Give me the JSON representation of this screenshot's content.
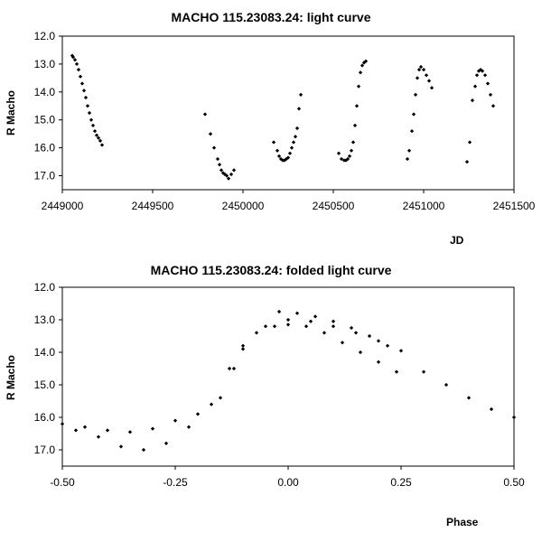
{
  "chart_data": [
    {
      "type": "scatter",
      "title": "MACHO 115.23083.24: light curve",
      "xlabel": "JD",
      "ylabel": "R Macho",
      "xlim": [
        2449000,
        2451500
      ],
      "ylim": [
        12.0,
        17.5
      ],
      "y_inverted": true,
      "grid": false,
      "marker_color": "#000000",
      "xticks": [
        "2449000",
        "2449500",
        "2450000",
        "2450500",
        "2451000",
        "2451500"
      ],
      "yticks": [
        "12.0",
        "13.0",
        "14.0",
        "15.0",
        "16.0",
        "17.0"
      ],
      "segments": [
        {
          "x": [
            2449055,
            2449060,
            2449070,
            2449080,
            2449090,
            2449100,
            2449110,
            2449120,
            2449130,
            2449140,
            2449150,
            2449160,
            2449170,
            2449180,
            2449190,
            2449200,
            2449210,
            2449220
          ],
          "y": [
            12.7,
            12.75,
            12.85,
            13.0,
            13.2,
            13.45,
            13.7,
            13.95,
            14.2,
            14.5,
            14.75,
            15.0,
            15.2,
            15.4,
            15.55,
            15.65,
            15.75,
            15.9
          ]
        },
        {
          "x": [
            2449790,
            2449820,
            2449840,
            2449860,
            2449870,
            2449880,
            2449890,
            2449900,
            2449910,
            2449920,
            2449935,
            2449950
          ],
          "y": [
            14.8,
            15.5,
            16.0,
            16.4,
            16.6,
            16.8,
            16.9,
            16.95,
            17.0,
            17.1,
            16.95,
            16.8
          ]
        },
        {
          "x": [
            2450170,
            2450190,
            2450200,
            2450210,
            2450220,
            2450230,
            2450240,
            2450250,
            2450260,
            2450270,
            2450280,
            2450290,
            2450300,
            2450310,
            2450320
          ],
          "y": [
            15.8,
            16.1,
            16.3,
            16.4,
            16.45,
            16.45,
            16.4,
            16.35,
            16.2,
            16.0,
            15.8,
            15.6,
            15.3,
            14.6,
            14.1
          ]
        },
        {
          "x": [
            2450530,
            2450545,
            2450560,
            2450570,
            2450580,
            2450590,
            2450600,
            2450610,
            2450620,
            2450630,
            2450640,
            2450650,
            2450660,
            2450670,
            2450680
          ],
          "y": [
            16.2,
            16.4,
            16.45,
            16.45,
            16.4,
            16.3,
            16.1,
            15.8,
            15.2,
            14.5,
            13.8,
            13.3,
            13.05,
            12.95,
            12.9
          ]
        },
        {
          "x": [
            2450910,
            2450920,
            2450935,
            2450945,
            2450955,
            2450965,
            2450975,
            2450985,
            2451000,
            2451015,
            2451030,
            2451045
          ],
          "y": [
            16.4,
            16.1,
            15.4,
            14.8,
            14.1,
            13.5,
            13.2,
            13.1,
            13.2,
            13.4,
            13.6,
            13.85
          ]
        },
        {
          "x": [
            2451240,
            2451255,
            2451270,
            2451285,
            2451295,
            2451305,
            2451315,
            2451325,
            2451340,
            2451355,
            2451370,
            2451385
          ],
          "y": [
            16.5,
            15.8,
            14.3,
            13.8,
            13.4,
            13.25,
            13.2,
            13.25,
            13.4,
            13.7,
            14.1,
            14.5
          ]
        }
      ]
    },
    {
      "type": "scatter",
      "title": "MACHO 115.23083.24: folded light curve",
      "xlabel": "Phase",
      "ylabel": "R Macho",
      "xlim": [
        -0.5,
        0.5
      ],
      "ylim": [
        12.0,
        17.5
      ],
      "y_inverted": true,
      "grid": false,
      "marker_color": "#000000",
      "xticks": [
        "-0.50",
        "-0.25",
        "0.00",
        "0.25",
        "0.50"
      ],
      "yticks": [
        "12.0",
        "13.0",
        "14.0",
        "15.0",
        "16.0",
        "17.0"
      ],
      "segments": [
        {
          "x": [
            -0.5,
            -0.45,
            -0.4,
            -0.35,
            -0.3,
            -0.25,
            -0.2,
            -0.15,
            -0.12,
            -0.1,
            -0.05,
            0.0,
            0.05,
            0.1,
            0.15,
            0.2,
            0.25,
            0.3,
            0.35,
            0.4,
            0.45,
            0.5
          ],
          "y": [
            16.2,
            16.3,
            16.4,
            16.45,
            16.35,
            16.1,
            15.9,
            15.4,
            14.5,
            13.8,
            13.2,
            13.0,
            13.05,
            13.2,
            13.4,
            13.65,
            13.95,
            14.6,
            15.0,
            15.4,
            15.75,
            16.0
          ]
        },
        {
          "x": [
            -0.47,
            -0.42,
            -0.37,
            -0.32,
            -0.27,
            -0.22,
            -0.17,
            -0.13,
            -0.1,
            -0.07,
            -0.03,
            0.0,
            0.04,
            0.08,
            0.12,
            0.16,
            0.2,
            0.24
          ],
          "y": [
            16.4,
            16.6,
            16.9,
            17.0,
            16.8,
            16.3,
            15.6,
            14.5,
            13.9,
            13.4,
            13.2,
            13.15,
            13.2,
            13.4,
            13.7,
            14.0,
            14.3,
            14.6
          ]
        },
        {
          "x": [
            -0.02,
            0.02,
            0.06,
            0.1,
            0.14,
            0.18,
            0.22
          ],
          "y": [
            12.75,
            12.8,
            12.9,
            13.05,
            13.25,
            13.5,
            13.8
          ]
        }
      ]
    }
  ]
}
